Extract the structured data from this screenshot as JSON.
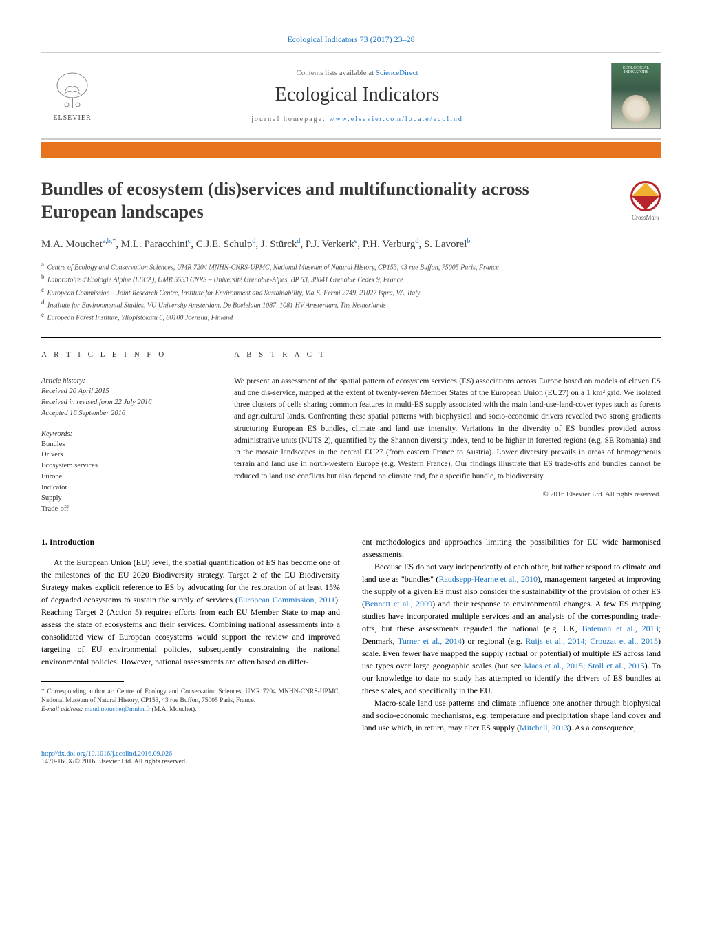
{
  "colors": {
    "link": "#1a73c4",
    "accent_bar": "#e8731e",
    "crossmark_ring": "#b8252c",
    "text": "#000000",
    "muted": "#666666"
  },
  "header": {
    "citation": "Ecological Indicators 73 (2017) 23–28",
    "contents_prefix": "Contents lists available at ",
    "contents_link": "ScienceDirect",
    "journal_name": "Ecological Indicators",
    "homepage_prefix": "journal homepage: ",
    "homepage_url": "www.elsevier.com/locate/ecolind",
    "publisher": "ELSEVIER",
    "cover_title": "ECOLOGICAL INDICATORS"
  },
  "crossmark": {
    "label": "CrossMark"
  },
  "title": "Bundles of ecosystem (dis)services and multifunctionality across European landscapes",
  "authors_html": "M.A. Mouchet|a,b,*|, M.L. Paracchini|c|, C.J.E. Schulp|d|, J. Stürck|d|, P.J. Verkerk|e|, P.H. Verburg|d|, S. Lavorel|b|",
  "author_list": [
    {
      "name": "M.A. Mouchet",
      "sup": "a,b,*"
    },
    {
      "name": "M.L. Paracchini",
      "sup": "c"
    },
    {
      "name": "C.J.E. Schulp",
      "sup": "d"
    },
    {
      "name": "J. Stürck",
      "sup": "d"
    },
    {
      "name": "P.J. Verkerk",
      "sup": "e"
    },
    {
      "name": "P.H. Verburg",
      "sup": "d"
    },
    {
      "name": "S. Lavorel",
      "sup": "b"
    }
  ],
  "affiliations": [
    {
      "sup": "a",
      "text": "Centre of Ecology and Conservation Sciences, UMR 7204 MNHN-CNRS-UPMC, National Museum of Natural History, CP153, 43 rue Buffon, 75005 Paris, France"
    },
    {
      "sup": "b",
      "text": "Laboratoire d'Ecologie Alpine (LECA), UMR 5553 CNRS – Université Grenoble-Alpes, BP 53, 38041 Grenoble Cedex 9, France"
    },
    {
      "sup": "c",
      "text": "European Commission – Joint Research Centre, Institute for Environment and Sustainability, Via E. Fermi 2749, 21027 Ispra, VA, Italy"
    },
    {
      "sup": "d",
      "text": "Institute for Environmental Studies, VU University Amsterdam, De Boelelaan 1087, 1081 HV Amsterdam, The Netherlands"
    },
    {
      "sup": "e",
      "text": "European Forest Institute, Yliopistokatu 6, 80100 Joensuu, Finland"
    }
  ],
  "article_info": {
    "heading": "a r t i c l e   i n f o",
    "history_label": "Article history:",
    "received": "Received 20 April 2015",
    "revised": "Received in revised form 22 July 2016",
    "accepted": "Accepted 16 September 2016",
    "keywords_label": "Keywords:",
    "keywords": [
      "Bundles",
      "Drivers",
      "Ecosystem services",
      "Europe",
      "Indicator",
      "Supply",
      "Trade-off"
    ]
  },
  "abstract": {
    "heading": "a b s t r a c t",
    "text": "We present an assessment of the spatial pattern of ecosystem services (ES) associations across Europe based on models of eleven ES and one dis-service, mapped at the extent of twenty-seven Member States of the European Union (EU27) on a 1 km² grid. We isolated three clusters of cells sharing common features in multi-ES supply associated with the main land-use-land-cover types such as forests and agricultural lands. Confronting these spatial patterns with biophysical and socio-economic drivers revealed two strong gradients structuring European ES bundles, climate and land use intensity. Variations in the diversity of ES bundles provided across administrative units (NUTS 2), quantified by the Shannon diversity index, tend to be higher in forested regions (e.g. SE Romania) and in the mosaic landscapes in the central EU27 (from eastern France to Austria). Lower diversity prevails in areas of homogeneous terrain and land use in north-western Europe (e.g. Western France). Our findings illustrate that ES trade-offs and bundles cannot be reduced to land use conflicts but also depend on climate and, for a specific bundle, to biodiversity.",
    "copyright": "© 2016 Elsevier Ltd. All rights reserved."
  },
  "body": {
    "section_number": "1.",
    "section_title": "Introduction",
    "col1_p1": "At the European Union (EU) level, the spatial quantification of ES has become one of the milestones of the EU 2020 Biodiversity strategy. Target 2 of the EU Biodiversity Strategy makes explicit reference to ES by advocating for the restoration of at least 15% of degraded ecosystems to sustain the supply of services (",
    "col1_ref1": "European Commission, 2011",
    "col1_p1b": "). Reaching Target 2 (Action 5) requires efforts from each EU Member State to map and assess the state of ecosystems and their services. Combining national assessments into a consolidated view of European ecosystems would support the review and improved targeting of EU environmental policies, subsequently constraining the national environmental policies. However, national assessments are often based on differ-",
    "col2_p1a": "ent methodologies and approaches limiting the possibilities for EU wide harmonised assessments.",
    "col2_p2a": "Because ES do not vary independently of each other, but rather respond to climate and land use as \"bundles\" (",
    "col2_ref1": "Raudsepp-Hearne et al., 2010",
    "col2_p2b": "), management targeted at improving the supply of a given ES must also consider the sustainability of the provision of other ES (",
    "col2_ref2": "Bennett et al., 2009",
    "col2_p2c": ") and their response to environmental changes. A few ES mapping studies have incorporated multiple services and an analysis of the corresponding trade-offs, but these assessments regarded the national (e.g. UK, ",
    "col2_ref3": "Bateman et al., 2013",
    "col2_p2d": "; Denmark, ",
    "col2_ref4": "Turner et al., 2014",
    "col2_p2e": ") or regional (e.g. ",
    "col2_ref5": "Ruijs et al., 2014; Crouzat et al., 2015",
    "col2_p2f": ") scale. Even fewer have mapped the supply (actual or potential) of multiple ES across land use types over large geographic scales (but see ",
    "col2_ref6": "Maes et al., 2015; Stoll et al., 2015",
    "col2_p2g": "). To our knowledge to date no study has attempted to identify the drivers of ES bundles at these scales, and specifically in the EU.",
    "col2_p3a": "Macro-scale land use patterns and climate influence one another through biophysical and socio-economic mechanisms, e.g. temperature and precipitation shape land cover and land use which, in return, may alter ES supply (",
    "col2_ref7": "Mitchell, 2013",
    "col2_p3b": "). As a consequence,"
  },
  "footnote": {
    "corresponding": "* Corresponding author at: Centre of Ecology and Conservation Sciences, UMR 7204 MNHN-CNRS-UPMC, National Museum of Natural History, CP153, 43 rue Buffon, 75005 Paris, France.",
    "email_label": "E-mail address: ",
    "email": "maud.mouchet@mnhn.fr",
    "email_suffix": " (M.A. Mouchet)."
  },
  "doi": {
    "url": "http://dx.doi.org/10.1016/j.ecolind.2016.09.026",
    "issn_line": "1470-160X/© 2016 Elsevier Ltd. All rights reserved."
  }
}
